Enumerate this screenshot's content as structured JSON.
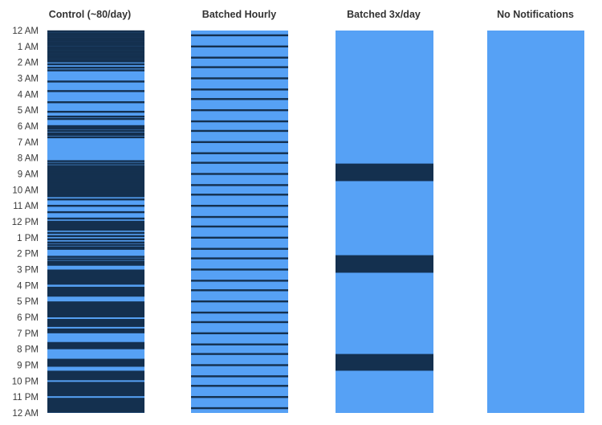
{
  "chart_data": {
    "type": "timeline",
    "time_axis": {
      "ticks": [
        "12 AM",
        "1 AM",
        "2 AM",
        "3 AM",
        "4 AM",
        "5 AM",
        "6 AM",
        "7 AM",
        "8 AM",
        "9 AM",
        "10 AM",
        "11 AM",
        "12 PM",
        "1 PM",
        "2 PM",
        "3 PM",
        "4 PM",
        "5 PM",
        "6 PM",
        "7 PM",
        "8 PM",
        "9 PM",
        "10 PM",
        "11 PM",
        "12 AM"
      ],
      "range_hours": [
        0,
        24
      ]
    },
    "colors": {
      "background": "#56a1f5",
      "notification": "#14304f"
    },
    "columns": [
      {
        "title": "Control (~80/day)",
        "event_hours": [
          0.05,
          0.17,
          0.28,
          0.39,
          0.5,
          0.61,
          0.72,
          0.83,
          0.94,
          1.06,
          1.17,
          1.28,
          1.39,
          1.5,
          1.61,
          1.72,
          1.83,
          1.94,
          2.12,
          2.33,
          2.5,
          3.2,
          3.8,
          4.5,
          5.1,
          5.4,
          5.55,
          6.0,
          6.08,
          6.16,
          6.3,
          6.45,
          6.55,
          6.7,
          8.2,
          8.35,
          8.5,
          8.6,
          8.7,
          8.8,
          8.9,
          9.0,
          9.1,
          9.2,
          9.3,
          9.4,
          9.5,
          9.6,
          9.7,
          9.8,
          9.9,
          10.0,
          10.1,
          10.2,
          10.3,
          10.4,
          10.6,
          11.0,
          11.4,
          11.8,
          12.0,
          12.1,
          12.2,
          12.3,
          12.4,
          12.5,
          12.7,
          12.9,
          13.1,
          13.3,
          13.45,
          13.6,
          13.7,
          14.2,
          14.35,
          14.5,
          14.6,
          14.7,
          23.85,
          23.93
        ],
        "blocks": [
          [
            15.0,
            15.95
          ],
          [
            16.08,
            16.7
          ],
          [
            17.0,
            18.0
          ],
          [
            18.1,
            18.6
          ],
          [
            18.7,
            19.0
          ],
          [
            19.55,
            20.0
          ],
          [
            20.6,
            21.1
          ],
          [
            21.35,
            21.95
          ],
          [
            22.05,
            22.95
          ],
          [
            23.05,
            23.8
          ]
        ]
      },
      {
        "title": "Batched Hourly",
        "event_hours": [
          0.3,
          1.0,
          1.7,
          2.3,
          3.0,
          3.7,
          4.3,
          5.0,
          5.7,
          6.3,
          7.0,
          7.7,
          8.3,
          9.0,
          9.7,
          10.3,
          11.0,
          11.7,
          12.3,
          13.0,
          13.7,
          14.3,
          15.0,
          15.7,
          16.3,
          17.0,
          17.7,
          18.3,
          19.0,
          19.7,
          20.3,
          21.0,
          21.7,
          22.3,
          23.0,
          23.7
        ]
      },
      {
        "title": "Batched 3x/day",
        "blocks": [
          [
            8.35,
            9.45
          ],
          [
            14.1,
            15.2
          ],
          [
            20.3,
            21.35
          ]
        ]
      },
      {
        "title": "No Notifications",
        "blocks": []
      }
    ]
  }
}
